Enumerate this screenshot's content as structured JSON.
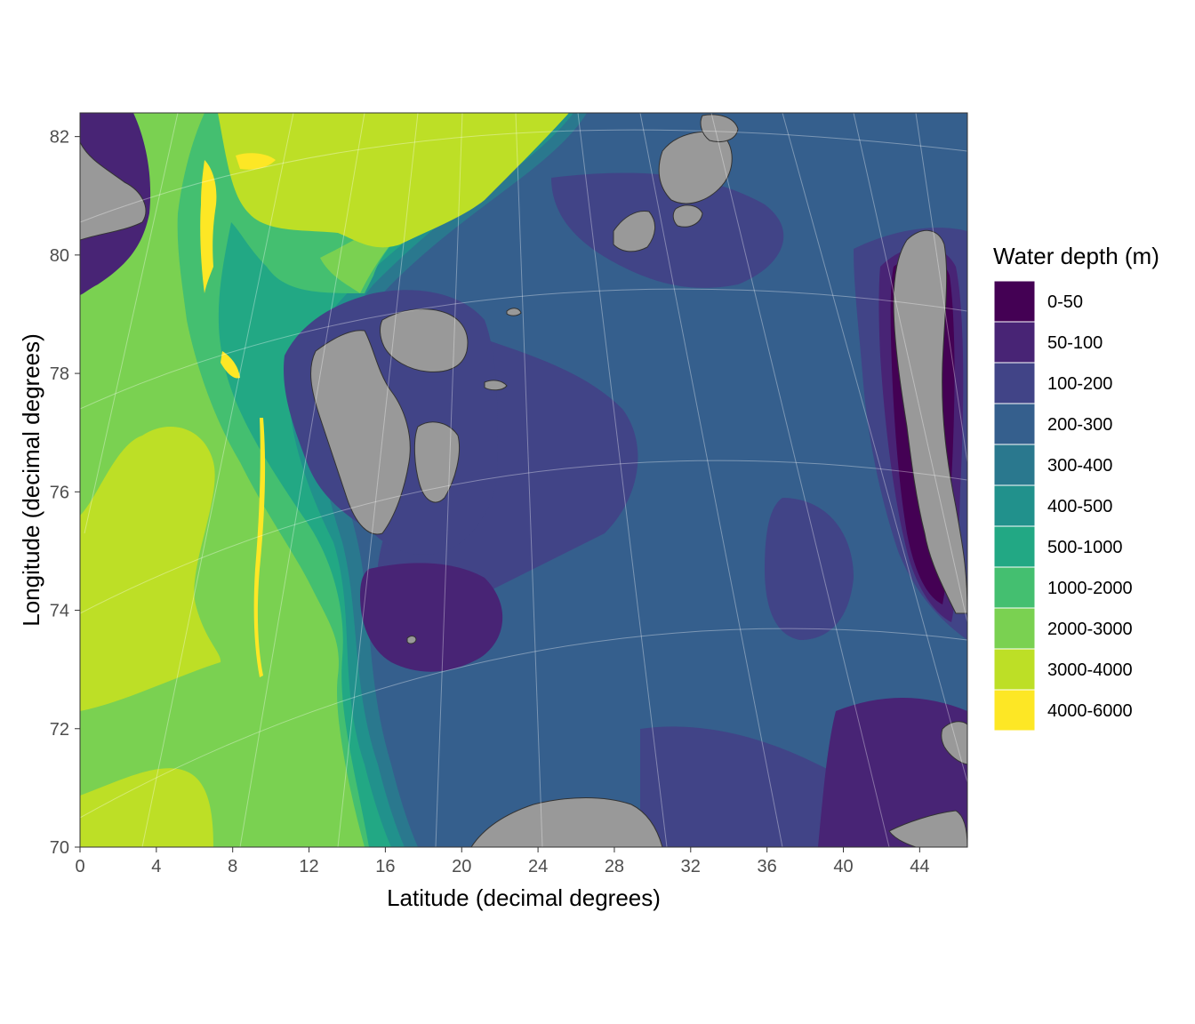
{
  "chart_data": {
    "type": "heatmap",
    "map_kind": "bathymetry",
    "xlabel": "Latitude (decimal degrees)",
    "ylabel": "Longitude (decimal degrees)",
    "xlim": [
      0,
      46.5
    ],
    "ylim": [
      70,
      82.4
    ],
    "x_ticks": [
      0,
      4,
      8,
      12,
      16,
      20,
      24,
      28,
      32,
      36,
      40,
      44
    ],
    "y_ticks": [
      70,
      72,
      74,
      76,
      78,
      80,
      82
    ],
    "graticule": true,
    "land_color": "#999999",
    "legend": {
      "title": "Water depth (m)",
      "placement": "right",
      "entries": [
        {
          "label": "0-50",
          "color": "#440154"
        },
        {
          "label": "50-100",
          "color": "#482475"
        },
        {
          "label": "100-200",
          "color": "#414487"
        },
        {
          "label": "200-300",
          "color": "#355f8d"
        },
        {
          "label": "300-400",
          "color": "#2a788e"
        },
        {
          "label": "400-500",
          "color": "#21918c"
        },
        {
          "label": "500-1000",
          "color": "#22a884"
        },
        {
          "label": "1000-2000",
          "color": "#44bf70"
        },
        {
          "label": "2000-3000",
          "color": "#7ad151"
        },
        {
          "label": "3000-4000",
          "color": "#bddf26"
        },
        {
          "label": "4000-6000",
          "color": "#fde725"
        }
      ]
    }
  }
}
